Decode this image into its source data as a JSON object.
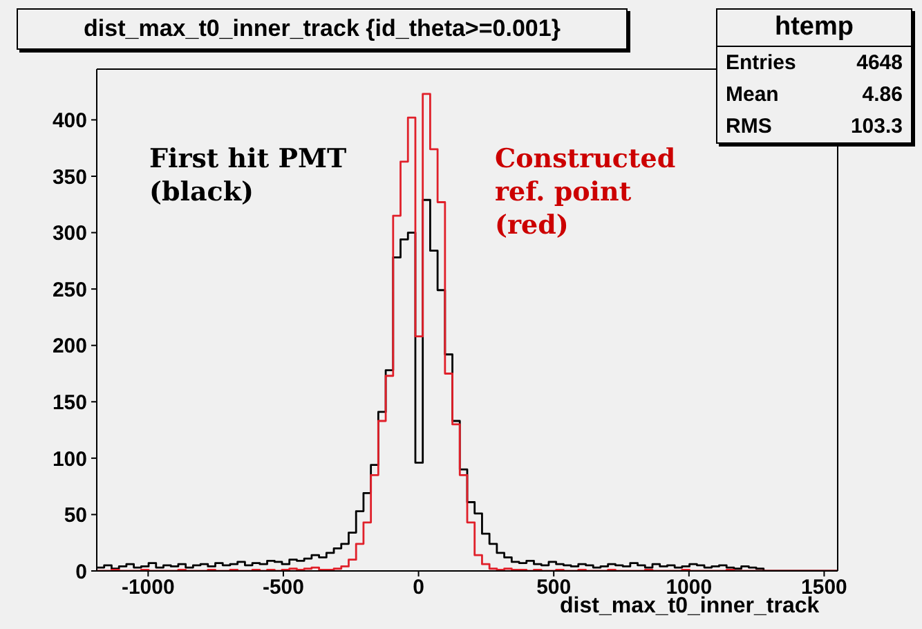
{
  "chart_data": {
    "type": "histogram",
    "title": "dist_max_t0_inner_track {id_theta>=0.001}",
    "xlabel": "dist_max_t0_inner_track",
    "annotations": [
      "First hit PMT (black)",
      "Constructed ref. point (red)",
      "htemp",
      "Entries 4648",
      "Mean 4.86",
      "RMS 103.3"
    ],
    "bins": [
      -1190,
      -1162.6,
      -1135.2,
      -1107.8,
      -1080.4,
      -1053,
      -1025.6,
      -998.2,
      -970.8,
      -943.4,
      -916,
      -888.6,
      -861.2,
      -833.8,
      -806.4,
      -779,
      -751.6,
      -724.2,
      -696.8,
      -669.4,
      -642,
      -614.6,
      -587.2,
      -559.8,
      -532.4,
      -505,
      -477.6,
      -450.2,
      -422.8,
      -395.4,
      -368,
      -340.6,
      -313.2,
      -285.8,
      -258.4,
      -231,
      -203.6,
      -176.2,
      -148.8,
      -121.4,
      -94,
      -66.6,
      -39.2,
      -11.8,
      15.6,
      43,
      70.4,
      97.8,
      125.2,
      152.6,
      180,
      207.4,
      234.8,
      262.2,
      289.6,
      317,
      344.4,
      371.8,
      399.2,
      426.6,
      454,
      481.4,
      508.8,
      536.2,
      563.6,
      591,
      618.4,
      645.8,
      673.2,
      700.6,
      728,
      755.4,
      782.8,
      810.2,
      837.6,
      865,
      892.4,
      919.8,
      947.2,
      974.6,
      1002,
      1029.4,
      1056.8,
      1084.2,
      1111.6,
      1139,
      1166.4,
      1193.8,
      1221.2,
      1248.6,
      1276,
      1303.4,
      1330.8,
      1358.2,
      1385.6,
      1413,
      1440.4,
      1467.8,
      1495.2,
      1522.6,
      1550
    ],
    "series": [
      {
        "color": "#000000",
        "values": [
          3,
          5,
          2,
          4,
          6,
          3,
          4,
          7,
          3,
          5,
          4,
          6,
          3,
          5,
          6,
          4,
          7,
          5,
          6,
          8,
          5,
          7,
          6,
          9,
          8,
          6,
          10,
          9,
          11,
          14,
          12,
          16,
          20,
          24,
          34,
          53,
          69,
          94,
          141,
          178,
          278,
          294,
          300,
          96,
          329,
          284,
          249,
          192,
          133,
          90,
          61,
          51,
          33,
          24,
          16,
          12,
          8,
          7,
          9,
          6,
          5,
          8,
          6,
          5,
          4,
          6,
          5,
          3,
          4,
          6,
          5,
          4,
          7,
          5,
          3,
          6,
          4,
          5,
          3,
          4,
          6,
          5,
          3,
          4,
          5,
          3,
          2,
          4,
          3,
          2,
          0,
          0,
          0,
          0,
          0,
          0,
          0,
          0,
          0,
          0
        ]
      },
      {
        "color": "#e0202a",
        "values": [
          0,
          0,
          1,
          0,
          0,
          0,
          1,
          0,
          0,
          0,
          0,
          1,
          0,
          0,
          0,
          1,
          0,
          0,
          1,
          0,
          0,
          1,
          0,
          1,
          0,
          1,
          2,
          1,
          2,
          3,
          1,
          1,
          2,
          4,
          10,
          24,
          43,
          85,
          133,
          173,
          315,
          363,
          402,
          208,
          423,
          374,
          327,
          175,
          130,
          85,
          43,
          14,
          6,
          2,
          1,
          2,
          1,
          1,
          0,
          1,
          0,
          0,
          1,
          0,
          0,
          1,
          0,
          0,
          0,
          1,
          0,
          0,
          0,
          0,
          1,
          0,
          0,
          0,
          0,
          1,
          0,
          0,
          0,
          0,
          0,
          1,
          0,
          0,
          0,
          0,
          0,
          0,
          0,
          0,
          0,
          0,
          0,
          0,
          0,
          0
        ]
      }
    ],
    "xlim": [
      -1190,
      1550
    ],
    "xticks": [
      -1000,
      -500,
      0,
      500,
      1000,
      1500
    ],
    "ylim": [
      0,
      445
    ],
    "yticks": [
      0,
      50,
      100,
      150,
      200,
      250,
      300,
      350,
      400
    ],
    "grid": false,
    "legend": false
  }
}
